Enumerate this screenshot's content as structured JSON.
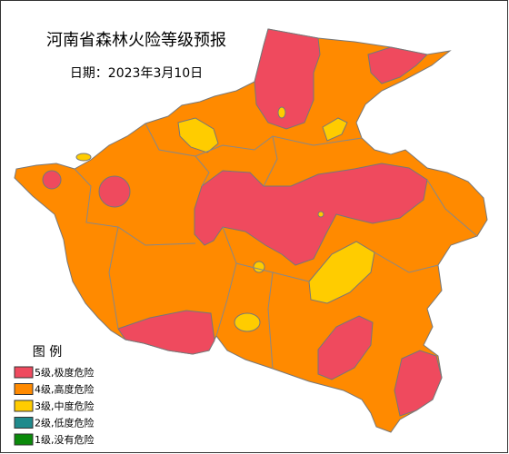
{
  "title": "河南省森林火险等级预报",
  "date": "日期：2023年3月10日",
  "legend": {
    "title": "图 例",
    "items": [
      {
        "label": "5级,极度危险",
        "color": "#ef4a5e"
      },
      {
        "label": "4级,高度危险",
        "color": "#ff8a00"
      },
      {
        "label": "3级,中度危险",
        "color": "#ffcc00"
      },
      {
        "label": "2级,低度危险",
        "color": "#1f8a8c"
      },
      {
        "label": "1级,没有危险",
        "color": "#0a8a0a"
      }
    ]
  }
}
